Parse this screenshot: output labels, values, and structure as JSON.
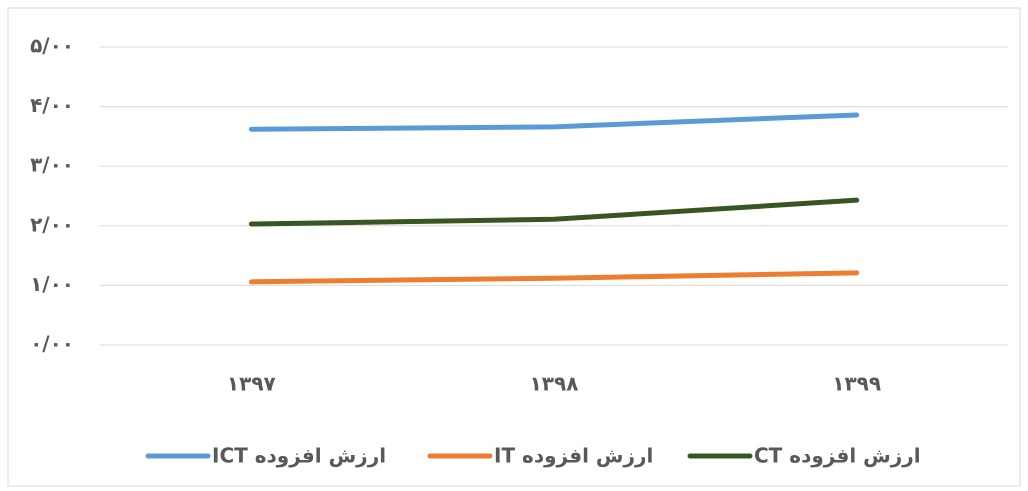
{
  "chart_data": {
    "type": "line",
    "categories": [
      "۱۳۹۷",
      "۱۳۹۸",
      "۱۳۹۹"
    ],
    "series": [
      {
        "name": "ارزش افزوده ICT",
        "color": "#5b9bd5",
        "values": [
          3.62,
          3.66,
          3.86
        ]
      },
      {
        "name": "ارزش افزوده IT",
        "color": "#ed7d31",
        "values": [
          1.06,
          1.12,
          1.21
        ]
      },
      {
        "name": "ارزش افزوده CT",
        "color": "#375623",
        "values": [
          2.03,
          2.11,
          2.43
        ]
      }
    ],
    "ylim": [
      0,
      5
    ],
    "yticks": [
      {
        "value": 0,
        "label": "۰/۰۰"
      },
      {
        "value": 1,
        "label": "۱/۰۰"
      },
      {
        "value": 2,
        "label": "۲/۰۰"
      },
      {
        "value": 3,
        "label": "۳/۰۰"
      },
      {
        "value": 4,
        "label": "۴/۰۰"
      },
      {
        "value": 5,
        "label": "۵/۰۰"
      }
    ],
    "grid": true,
    "legend": "bottom"
  }
}
